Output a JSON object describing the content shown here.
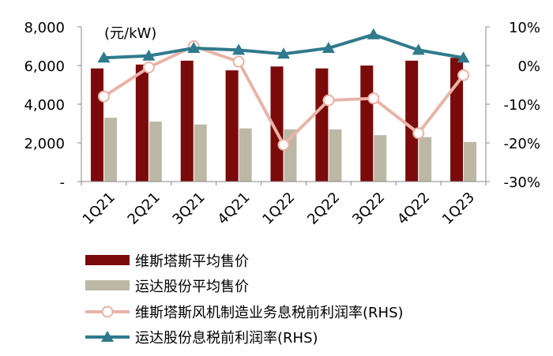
{
  "chart_data": {
    "type": "bar+line",
    "unit_label": "(元/kW)",
    "categories": [
      "1Q21",
      "2Q21",
      "3Q21",
      "4Q21",
      "1Q22",
      "2Q22",
      "3Q22",
      "4Q22",
      "1Q23"
    ],
    "left_axis": {
      "ylim": [
        0,
        8000
      ],
      "ticks": [
        "-",
        "2,000",
        "4,000",
        "6,000",
        "8,000"
      ],
      "tick_values": [
        0,
        2000,
        4000,
        6000,
        8000
      ]
    },
    "right_axis": {
      "ylim": [
        -30,
        10
      ],
      "ticks": [
        "-30%",
        "-20%",
        "-10%",
        "0%",
        "10%"
      ],
      "tick_values": [
        -30,
        -20,
        -10,
        0,
        10
      ]
    },
    "series": [
      {
        "name": "维斯塔斯平均售价",
        "kind": "bar",
        "axis": "left",
        "color": "#7b0a0a",
        "values": [
          5850,
          6050,
          6250,
          5750,
          5950,
          5850,
          6000,
          6250,
          6400
        ]
      },
      {
        "name": "运达股份平均售价",
        "kind": "bar",
        "axis": "left",
        "color": "#bdb8a6",
        "values": [
          3300,
          3100,
          2950,
          2750,
          2700,
          2700,
          2400,
          2300,
          2050
        ]
      },
      {
        "name": "维斯塔斯风机制造业务息税前利润率(RHS)",
        "kind": "line",
        "axis": "right",
        "color": "#e8b4a8",
        "marker": "circle",
        "values": [
          -8,
          -0.5,
          5,
          1,
          -20.5,
          -9,
          -8.5,
          -17.5,
          -2.5
        ]
      },
      {
        "name": "运达股份息税前利润率(RHS)",
        "kind": "line",
        "axis": "right",
        "color": "#2f7a8c",
        "marker": "triangle",
        "values": [
          2,
          2.5,
          4.5,
          4,
          3,
          4.5,
          8,
          4,
          2
        ]
      }
    ]
  }
}
